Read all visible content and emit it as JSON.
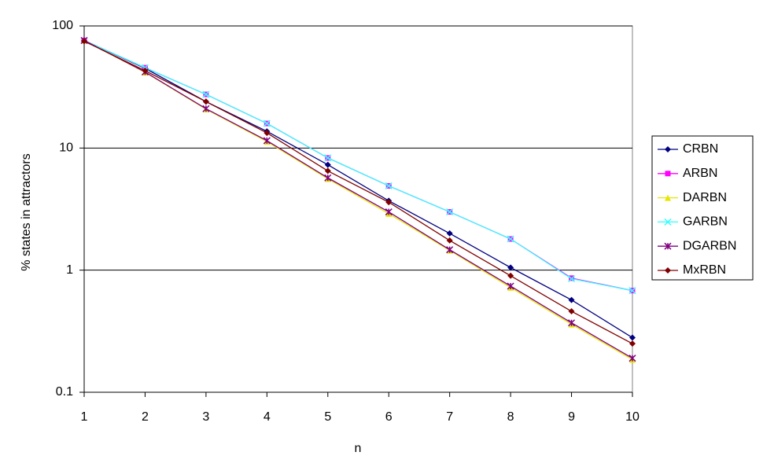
{
  "chart_data": {
    "type": "line",
    "x_label": "n",
    "y_label": "% states in attractors",
    "x": [
      1,
      2,
      3,
      4,
      5,
      6,
      7,
      8,
      9,
      10
    ],
    "xlim": [
      1,
      10
    ],
    "xticks": [
      1,
      2,
      3,
      4,
      5,
      6,
      7,
      8,
      9,
      10
    ],
    "ylim": [
      0.1,
      100
    ],
    "yticks": [
      0.1,
      1,
      10,
      100
    ],
    "y_log_scale": true,
    "grid": true,
    "legend_position": "right",
    "series": [
      {
        "name": "CRBN",
        "color": "#000080",
        "marker": "diamond",
        "values": [
          76,
          45,
          24,
          13.7,
          7.3,
          3.7,
          2.0,
          1.05,
          0.57,
          0.28
        ]
      },
      {
        "name": "ARBN",
        "color": "#ff00ff",
        "marker": "square",
        "values": [
          76,
          45.5,
          27.5,
          15.9,
          8.3,
          4.9,
          3.0,
          1.8,
          0.86,
          0.68
        ]
      },
      {
        "name": "DARBN",
        "color": "#e6e600",
        "marker": "triangle",
        "values": [
          76,
          41.7,
          20.8,
          11.3,
          5.6,
          2.9,
          1.45,
          0.72,
          0.36,
          0.185
        ]
      },
      {
        "name": "GARBN",
        "color": "#33ffff",
        "marker": "cross",
        "values": [
          76,
          45.5,
          27.5,
          15.9,
          8.3,
          4.9,
          3.0,
          1.8,
          0.85,
          0.68
        ]
      },
      {
        "name": "DGARBN",
        "color": "#800080",
        "marker": "star",
        "values": [
          76,
          42,
          21,
          11.5,
          5.7,
          3.0,
          1.47,
          0.74,
          0.37,
          0.19
        ]
      },
      {
        "name": "MxRBN",
        "color": "#800000",
        "marker": "diamond",
        "values": [
          75,
          43,
          24,
          13.3,
          6.5,
          3.6,
          1.75,
          0.9,
          0.46,
          0.25
        ]
      }
    ]
  }
}
